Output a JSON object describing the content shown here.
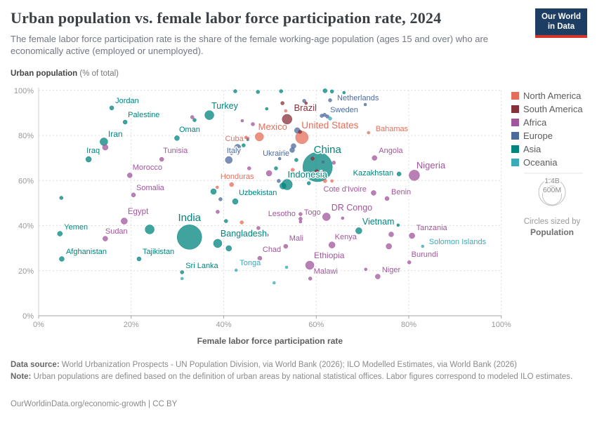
{
  "header": {
    "title": "Urban population vs. female labor force participation rate, 2024",
    "subtitle": "The female labor force participation rate is the share of the female working-age population (ages 15 and over) who are economically active (employed or unemployed).",
    "logo_line1": "Our World",
    "logo_line2": "in Data"
  },
  "axes": {
    "y_title_bold": "Urban population",
    "y_title_rest": " (% of total)",
    "x_title": "Female labor force participation rate"
  },
  "legend": {
    "continents": [
      {
        "label": "North America",
        "color": "#E56E5A"
      },
      {
        "label": "South America",
        "color": "#883039"
      },
      {
        "label": "Africa",
        "color": "#A2559C"
      },
      {
        "label": "Europe",
        "color": "#4C6A9C"
      },
      {
        "label": "Asia",
        "color": "#00847E"
      },
      {
        "label": "Oceania",
        "color": "#38AABA"
      }
    ],
    "size_legend": {
      "big": "1.4B",
      "small": "600M",
      "caption1": "Circles sized by",
      "caption2": "Population"
    }
  },
  "footer": {
    "source_label": "Data source:",
    "source_text": " World Urbanization Prospects - UN Population Division, via World Bank (2026); ILO Modelled Estimates, via World Bank (2026)",
    "note_label": "Note:",
    "note_text": " Urban populations are defined based on the definition of urban areas by national statistical offices. Labor figures correspond to modeled ILO estimates.",
    "cc": "OurWorldinData.org/economic-growth | CC BY"
  },
  "chart_data": {
    "type": "scatter",
    "title": "Urban population vs. female labor force participation rate, 2024",
    "xlabel": "Female labor force participation rate",
    "ylabel": "Urban population (% of total)",
    "xlim": [
      0,
      100
    ],
    "ylim": [
      0,
      100
    ],
    "x_ticks": [
      {
        "v": 0,
        "label": "0%"
      },
      {
        "v": 20,
        "label": "20%"
      },
      {
        "v": 40,
        "label": "40%"
      },
      {
        "v": 60,
        "label": "60%"
      },
      {
        "v": 80,
        "label": "80%"
      },
      {
        "v": 100,
        "label": "100%"
      }
    ],
    "y_ticks": [
      {
        "v": 0,
        "label": "0%"
      },
      {
        "v": 20,
        "label": "20%"
      },
      {
        "v": 40,
        "label": "40%"
      },
      {
        "v": 60,
        "label": "60%"
      },
      {
        "v": 80,
        "label": "80%"
      },
      {
        "v": 100,
        "label": "100%"
      }
    ],
    "colors": {
      "North America": "#E56E5A",
      "South America": "#883039",
      "Africa": "#A2559C",
      "Europe": "#4C6A9C",
      "Asia": "#00847E",
      "Oceania": "#38AABA"
    },
    "points": [
      {
        "label": "Jordan",
        "c": "Asia",
        "x": 15.8,
        "y": 92.2,
        "r": 3,
        "lp": [
          5,
          -7,
          "start"
        ],
        "fs": 11
      },
      {
        "label": "Palestine",
        "c": "Asia",
        "x": 18.7,
        "y": 85.9,
        "r": 3,
        "lp": [
          4,
          -7,
          "start"
        ],
        "fs": 11
      },
      {
        "label": "Iran",
        "c": "Asia",
        "x": 14.1,
        "y": 77.2,
        "r": 5.5,
        "lp": [
          6,
          -7,
          "start"
        ],
        "fs": 12
      },
      {
        "label": "Iraq",
        "c": "Asia",
        "x": 10.8,
        "y": 69.4,
        "r": 4,
        "lp": [
          -3,
          -9,
          "start"
        ],
        "fs": 11
      },
      {
        "label": "Oman",
        "c": "Asia",
        "x": 29.9,
        "y": 78.8,
        "r": 3.5,
        "lp": [
          3,
          -9,
          "start"
        ],
        "fs": 11
      },
      {
        "label": "Turkey",
        "c": "Asia",
        "x": 36.9,
        "y": 89.0,
        "r": 6.5,
        "lp": [
          3,
          -9,
          "start"
        ],
        "fs": 12.5
      },
      {
        "label": "Tunisia",
        "c": "Africa",
        "x": 26.6,
        "y": 69.4,
        "r": 3,
        "lp": [
          2,
          -9,
          "start"
        ],
        "fs": 11
      },
      {
        "label": "Morocco",
        "c": "Africa",
        "x": 19.7,
        "y": 62.3,
        "r": 3.5,
        "lp": [
          4,
          -8,
          "start"
        ],
        "fs": 11
      },
      {
        "label": "Somalia",
        "c": "Africa",
        "x": 20.5,
        "y": 53.6,
        "r": 3,
        "lp": [
          4,
          -7,
          "start"
        ],
        "fs": 11
      },
      {
        "label": "Egypt",
        "c": "Africa",
        "x": 18.5,
        "y": 42.0,
        "r": 4.5,
        "lp": [
          5,
          -10,
          "start"
        ],
        "fs": 11.5
      },
      {
        "label": "Yemen",
        "c": "Asia",
        "x": 4.6,
        "y": 36.4,
        "r": 3.5,
        "lp": [
          6,
          -6,
          "start"
        ],
        "fs": 11
      },
      {
        "label": "Sudan",
        "c": "Africa",
        "x": 14.4,
        "y": 34.2,
        "r": 3.5,
        "lp": [
          0,
          -7,
          "start"
        ],
        "fs": 11
      },
      {
        "label": "Afghanistan",
        "c": "Asia",
        "x": 5.0,
        "y": 25.2,
        "r": 3.5,
        "lp": [
          6,
          -7,
          "start"
        ],
        "fs": 11
      },
      {
        "label": "Tajikistan",
        "c": "Asia",
        "x": 21.7,
        "y": 25.2,
        "r": 3,
        "lp": [
          5,
          -7,
          "start"
        ],
        "fs": 11
      },
      {
        "label": "India",
        "c": "Asia",
        "x": 32.6,
        "y": 34.9,
        "r": 17.5,
        "lp": [
          0,
          -23,
          "middle"
        ],
        "fs": 15
      },
      {
        "label": "Sri Lanka",
        "c": "Asia",
        "x": 31.0,
        "y": 19.3,
        "r": 2.5,
        "lp": [
          5,
          -6,
          "start"
        ],
        "fs": 11
      },
      {
        "label": "Bangladesh",
        "c": "Asia",
        "x": 38.7,
        "y": 32.1,
        "r": 6,
        "lp": [
          4,
          -10,
          "start"
        ],
        "fs": 12.5
      },
      {
        "label": "Tonga",
        "c": "Oceania",
        "x": 42.7,
        "y": 20.2,
        "r": 2,
        "lp": [
          5,
          -7,
          "start"
        ],
        "fs": 11
      },
      {
        "label": "Cuba",
        "c": "North America",
        "x": 45.2,
        "y": 78.8,
        "r": 2,
        "lp": [
          -6,
          4,
          "end"
        ],
        "fs": 11
      },
      {
        "label": "Mexico",
        "c": "North America",
        "x": 47.7,
        "y": 79.4,
        "r": 6,
        "lp": [
          19,
          -10,
          "middle"
        ],
        "fs": 13
      },
      {
        "label": "Italy",
        "c": "Europe",
        "x": 41.1,
        "y": 69.1,
        "r": 5,
        "lp": [
          -3,
          -10,
          "start"
        ],
        "fs": 11
      },
      {
        "label": "Honduras",
        "c": "North America",
        "x": 41.7,
        "y": 58.2,
        "r": 3,
        "lp": [
          8,
          -8,
          "middle"
        ],
        "fs": 11
      },
      {
        "label": "Uzbekistan",
        "c": "Asia",
        "x": 42.5,
        "y": 50.7,
        "r": 4,
        "lp": [
          5,
          -9,
          "start"
        ],
        "fs": 11
      },
      {
        "label": "Ukraine",
        "c": "Europe",
        "x": 54.8,
        "y": 73.5,
        "r": 3.5,
        "lp": [
          -4,
          8,
          "end"
        ],
        "fs": 11
      },
      {
        "label": "Brazil",
        "c": "South America",
        "x": 53.7,
        "y": 87.2,
        "r": 7,
        "lp": [
          26,
          -12,
          "middle"
        ],
        "fs": 13
      },
      {
        "label": "United States",
        "c": "North America",
        "x": 56.9,
        "y": 79.1,
        "r": 9,
        "lp": [
          40,
          -13,
          "middle"
        ],
        "fs": 13.5
      },
      {
        "label": "Netherlands",
        "c": "Europe",
        "x": 63.0,
        "y": 95.6,
        "r": 2.5,
        "lp": [
          10,
          0,
          "start"
        ],
        "fs": 11
      },
      {
        "label": "Sweden",
        "c": "Europe",
        "x": 61.8,
        "y": 89.1,
        "r": 2.5,
        "lp": [
          8,
          -4,
          "start"
        ],
        "fs": 11
      },
      {
        "label": "Bahamas",
        "c": "North America",
        "x": 71.3,
        "y": 81.2,
        "r": 2,
        "lp": [
          10,
          -2,
          "start"
        ],
        "fs": 11
      },
      {
        "label": "China",
        "c": "Asia",
        "x": 60.3,
        "y": 66.0,
        "r": 21,
        "lp": [
          14,
          -20,
          "middle"
        ],
        "fs": 15
      },
      {
        "label": "Angola",
        "c": "Africa",
        "x": 72.6,
        "y": 70.0,
        "r": 3.5,
        "lp": [
          6,
          -7,
          "start"
        ],
        "fs": 11
      },
      {
        "label": "Nigeria",
        "c": "Africa",
        "x": 81.2,
        "y": 62.3,
        "r": 7.5,
        "lp": [
          3,
          -10,
          "start"
        ],
        "fs": 13
      },
      {
        "label": "Indonesia",
        "c": "Asia",
        "x": 53.7,
        "y": 58.2,
        "r": 7.5,
        "lp": [
          29,
          -10,
          "middle"
        ],
        "fs": 13
      },
      {
        "label": "Kazakhstan",
        "c": "Asia",
        "x": 77.9,
        "y": 62.9,
        "r": 3,
        "lp": [
          -8,
          2,
          "end"
        ],
        "fs": 11
      },
      {
        "label": "Cote d'Ivoire",
        "c": "Africa",
        "x": 72.4,
        "y": 54.5,
        "r": 3.5,
        "lp": [
          -10,
          -2,
          "end"
        ],
        "fs": 11
      },
      {
        "label": "Benin",
        "c": "Africa",
        "x": 75.3,
        "y": 52.0,
        "r": 3,
        "lp": [
          6,
          -6,
          "start"
        ],
        "fs": 11
      },
      {
        "label": "DR Congo",
        "c": "Africa",
        "x": 62.2,
        "y": 43.9,
        "r": 5.5,
        "lp": [
          7,
          -9,
          "start"
        ],
        "fs": 12.5
      },
      {
        "label": "Togo",
        "c": "Africa",
        "x": 56.6,
        "y": 45.1,
        "r": 2.5,
        "lp": [
          5,
          1,
          "start"
        ],
        "fs": 11
      },
      {
        "label": "Lesotho",
        "c": "Africa",
        "x": 56.6,
        "y": 43.0,
        "r": 2.5,
        "lp": [
          -7,
          -4,
          "end"
        ],
        "fs": 11
      },
      {
        "label": "Vietnam",
        "c": "Asia",
        "x": 69.2,
        "y": 37.7,
        "r": 4.5,
        "lp": [
          5,
          -9,
          "start"
        ],
        "fs": 12.5
      },
      {
        "label": "Tanzania",
        "c": "Africa",
        "x": 80.7,
        "y": 35.5,
        "r": 4,
        "lp": [
          6,
          -8,
          "start"
        ],
        "fs": 11
      },
      {
        "label": "Mali",
        "c": "Africa",
        "x": 53.4,
        "y": 30.8,
        "r": 3,
        "lp": [
          5,
          -8,
          "start"
        ],
        "fs": 11
      },
      {
        "label": "Kenya",
        "c": "Africa",
        "x": 63.4,
        "y": 31.4,
        "r": 4.5,
        "lp": [
          4,
          -8,
          "start"
        ],
        "fs": 11
      },
      {
        "label": "Chad",
        "c": "Africa",
        "x": 47.8,
        "y": 25.5,
        "r": 3,
        "lp": [
          4,
          -9,
          "start"
        ],
        "fs": 11
      },
      {
        "label": "Ethiopia",
        "c": "Africa",
        "x": 58.6,
        "y": 22.4,
        "r": 6,
        "lp": [
          6,
          -10,
          "start"
        ],
        "fs": 12
      },
      {
        "label": "Malawi",
        "c": "Africa",
        "x": 58.7,
        "y": 16.5,
        "r": 2.5,
        "lp": [
          5,
          -7,
          "start"
        ],
        "fs": 11
      },
      {
        "label": "Niger",
        "c": "Africa",
        "x": 73.3,
        "y": 17.4,
        "r": 3.5,
        "lp": [
          6,
          -6,
          "start"
        ],
        "fs": 11
      },
      {
        "label": "Burundi",
        "c": "Africa",
        "x": 80.1,
        "y": 23.7,
        "r": 2.5,
        "lp": [
          3,
          -8,
          "start"
        ],
        "fs": 11
      },
      {
        "label": "Solomon Islands",
        "c": "Oceania",
        "x": 83.0,
        "y": 30.8,
        "r": 2,
        "lp": [
          9,
          -3,
          "start"
        ],
        "fs": 11
      },
      {
        "c": "Africa",
        "x": 14.4,
        "y": 74.7,
        "r": 4
      },
      {
        "c": "Asia",
        "x": 42.5,
        "y": 99.6,
        "r": 2.5
      },
      {
        "c": "Asia",
        "x": 47.4,
        "y": 99.3,
        "r": 2.5
      },
      {
        "c": "Asia",
        "x": 52.4,
        "y": 99.6,
        "r": 2.5
      },
      {
        "c": "Asia",
        "x": 61.9,
        "y": 99.8,
        "r": 3
      },
      {
        "c": "Asia",
        "x": 63.4,
        "y": 99.5,
        "r": 2.5
      },
      {
        "c": "Asia",
        "x": 66.0,
        "y": 99.0,
        "r": 2
      },
      {
        "c": "Europe",
        "x": 70.6,
        "y": 93.7,
        "r": 2
      },
      {
        "c": "Europe",
        "x": 57.4,
        "y": 95.3,
        "r": 2.5
      },
      {
        "c": "South America",
        "x": 57.8,
        "y": 94.3,
        "r": 2
      },
      {
        "c": "Europe",
        "x": 61.2,
        "y": 88.7,
        "r": 2.5
      },
      {
        "c": "Europe",
        "x": 62.4,
        "y": 88.4,
        "r": 2.5
      },
      {
        "c": "Oceania",
        "x": 63.0,
        "y": 87.5,
        "r": 2.5
      },
      {
        "c": "South America",
        "x": 52.7,
        "y": 94.3,
        "r": 2.5
      },
      {
        "c": "North America",
        "x": 53.4,
        "y": 90.9,
        "r": 2
      },
      {
        "c": "Africa",
        "x": 44.0,
        "y": 86.5,
        "r": 2
      },
      {
        "c": "Africa",
        "x": 33.2,
        "y": 88.1,
        "r": 2.5
      },
      {
        "c": "Asia",
        "x": 33.7,
        "y": 86.8,
        "r": 2.5
      },
      {
        "c": "Asia",
        "x": 49.3,
        "y": 91.8,
        "r": 2
      },
      {
        "c": "Africa",
        "x": 46.3,
        "y": 85.0,
        "r": 2.5
      },
      {
        "c": "North America",
        "x": 44.8,
        "y": 79.1,
        "r": 2
      },
      {
        "c": "Europe",
        "x": 45.2,
        "y": 78.1,
        "r": 1.8
      },
      {
        "c": "Europe",
        "x": 43.0,
        "y": 74.7,
        "r": 4.5
      },
      {
        "c": "Asia",
        "x": 44.3,
        "y": 75.6,
        "r": 2.5
      },
      {
        "c": "Europe",
        "x": 41.7,
        "y": 72.2,
        "r": 2.5
      },
      {
        "c": "Europe",
        "x": 55.9,
        "y": 82.2,
        "r": 4
      },
      {
        "c": "South America",
        "x": 56.5,
        "y": 81.6,
        "r": 2.5
      },
      {
        "c": "Europe",
        "x": 55.1,
        "y": 75.3,
        "r": 3.5
      },
      {
        "c": "Europe",
        "x": 53.0,
        "y": 72.6,
        "r": 2.5
      },
      {
        "c": "Europe",
        "x": 52.1,
        "y": 69.7,
        "r": 2
      },
      {
        "c": "South America",
        "x": 59.2,
        "y": 69.7,
        "r": 2.5
      },
      {
        "c": "Europe",
        "x": 61.5,
        "y": 68.2,
        "r": 2
      },
      {
        "c": "Africa",
        "x": 63.8,
        "y": 67.9,
        "r": 2.5
      },
      {
        "c": "Asia",
        "x": 55.7,
        "y": 69.1,
        "r": 2.5
      },
      {
        "c": "South America",
        "x": 60.1,
        "y": 64.1,
        "r": 2.5
      },
      {
        "c": "North America",
        "x": 61.9,
        "y": 59.8,
        "r": 2.5
      },
      {
        "c": "North America",
        "x": 63.4,
        "y": 59.8,
        "r": 2
      },
      {
        "c": "Asia",
        "x": 58.4,
        "y": 58.8,
        "r": 2.5
      },
      {
        "c": "Africa",
        "x": 45.5,
        "y": 65.4,
        "r": 2.5
      },
      {
        "c": "Africa",
        "x": 49.8,
        "y": 63.2,
        "r": 4
      },
      {
        "c": "Asia",
        "x": 51.3,
        "y": 65.4,
        "r": 2.5
      },
      {
        "c": "Europe",
        "x": 51.9,
        "y": 59.8,
        "r": 2.5
      },
      {
        "c": "Asia",
        "x": 52.8,
        "y": 57.6,
        "r": 4.5
      },
      {
        "c": "North America",
        "x": 54.9,
        "y": 64.7,
        "r": 2.5
      },
      {
        "c": "Asia",
        "x": 37.8,
        "y": 55.1,
        "r": 4
      },
      {
        "c": "North America",
        "x": 38.6,
        "y": 57.0,
        "r": 2
      },
      {
        "c": "Europe",
        "x": 39.3,
        "y": 51.7,
        "r": 2.5
      },
      {
        "c": "Africa",
        "x": 38.7,
        "y": 46.1,
        "r": 2.5
      },
      {
        "c": "Asia",
        "x": 40.5,
        "y": 42.0,
        "r": 2.5
      },
      {
        "c": "North America",
        "x": 43.9,
        "y": 41.4,
        "r": 2.5
      },
      {
        "c": "Africa",
        "x": 47.5,
        "y": 38.9,
        "r": 2.5
      },
      {
        "c": "Africa",
        "x": 49.3,
        "y": 35.8,
        "r": 2.5
      },
      {
        "c": "Asia",
        "x": 24.0,
        "y": 38.3,
        "r": 6.5
      },
      {
        "c": "Asia",
        "x": 41.1,
        "y": 29.9,
        "r": 4
      },
      {
        "c": "Oceania",
        "x": 31.0,
        "y": 16.5,
        "r": 2
      },
      {
        "c": "Oceania",
        "x": 53.6,
        "y": 21.5,
        "r": 2
      },
      {
        "c": "Oceania",
        "x": 50.9,
        "y": 14.6,
        "r": 2
      },
      {
        "c": "Africa",
        "x": 76.2,
        "y": 36.1,
        "r": 3.5
      },
      {
        "c": "Africa",
        "x": 75.7,
        "y": 30.8,
        "r": 4
      },
      {
        "c": "Africa",
        "x": 70.7,
        "y": 20.6,
        "r": 2
      },
      {
        "c": "Asia",
        "x": 77.7,
        "y": 40.2,
        "r": 2
      },
      {
        "c": "Africa",
        "x": 65.7,
        "y": 43.3,
        "r": 2
      },
      {
        "c": "Africa",
        "x": 56.6,
        "y": 41.7,
        "r": 2
      },
      {
        "c": "Asia",
        "x": 4.9,
        "y": 52.3,
        "r": 2.5
      }
    ]
  }
}
